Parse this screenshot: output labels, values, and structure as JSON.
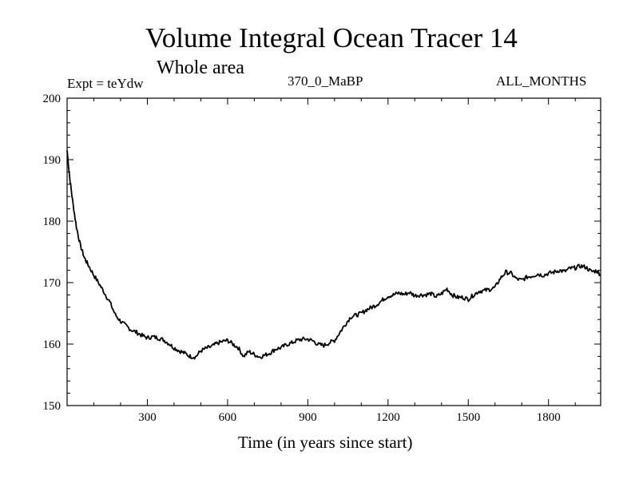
{
  "chart_data": {
    "type": "line",
    "title": "Volume Integral Ocean Tracer 14",
    "subtitle": "Whole area",
    "expt_label": "Expt = teYdw",
    "run_label": "370_0_MaBP",
    "months_label": "ALL_MONTHS",
    "xlabel": "Time (in years since start)",
    "ylabel": "",
    "xlim": [
      0,
      1995
    ],
    "ylim": [
      150,
      200
    ],
    "xticks": [
      300,
      600,
      900,
      1200,
      1500,
      1800
    ],
    "xtick_labels": [
      "300",
      "600",
      "900",
      "1200",
      "1500",
      "1800"
    ],
    "yticks": [
      150,
      160,
      170,
      180,
      190,
      200
    ],
    "ytick_labels": [
      "150",
      "160",
      "170",
      "180",
      "190",
      "200"
    ],
    "line_color": "#000000",
    "series": [
      {
        "name": "Tracer 14",
        "x": [
          0,
          10,
          20,
          35,
          50,
          65,
          80,
          100,
          120,
          140,
          160,
          180,
          200,
          220,
          240,
          260,
          280,
          300,
          320,
          340,
          360,
          380,
          400,
          420,
          440,
          460,
          480,
          500,
          520,
          540,
          560,
          580,
          600,
          620,
          640,
          660,
          680,
          700,
          720,
          740,
          760,
          780,
          800,
          820,
          840,
          860,
          880,
          900,
          920,
          940,
          960,
          980,
          1000,
          1020,
          1040,
          1060,
          1080,
          1100,
          1120,
          1140,
          1160,
          1180,
          1200,
          1220,
          1240,
          1260,
          1280,
          1300,
          1320,
          1340,
          1360,
          1380,
          1400,
          1420,
          1440,
          1460,
          1480,
          1500,
          1520,
          1540,
          1560,
          1580,
          1600,
          1620,
          1640,
          1660,
          1680,
          1700,
          1720,
          1740,
          1760,
          1780,
          1800,
          1820,
          1840,
          1860,
          1880,
          1900,
          1920,
          1940,
          1960,
          1980,
          1995
        ],
        "values": [
          191.5,
          187.0,
          183.5,
          179.0,
          176.0,
          174.0,
          172.8,
          171.2,
          169.8,
          168.3,
          166.8,
          164.8,
          163.7,
          163.0,
          162.3,
          161.9,
          161.4,
          161.0,
          161.2,
          161.0,
          160.7,
          160.1,
          159.4,
          158.9,
          158.5,
          158.0,
          157.9,
          158.9,
          159.3,
          159.6,
          160.1,
          160.4,
          160.6,
          160.0,
          159.4,
          158.0,
          158.8,
          158.3,
          157.9,
          158.2,
          158.6,
          159.2,
          159.4,
          159.9,
          160.2,
          160.6,
          160.8,
          160.8,
          160.5,
          159.9,
          159.8,
          160.2,
          160.6,
          161.9,
          163.2,
          164.4,
          164.7,
          165.0,
          165.6,
          166.0,
          166.5,
          167.2,
          167.8,
          168.0,
          168.3,
          168.1,
          168.4,
          167.9,
          168.0,
          168.0,
          168.2,
          167.7,
          168.2,
          169.0,
          168.0,
          167.6,
          167.6,
          167.3,
          168.0,
          168.6,
          168.7,
          168.9,
          169.2,
          170.7,
          171.7,
          171.5,
          170.6,
          170.4,
          170.9,
          171.1,
          171.4,
          171.2,
          171.5,
          171.7,
          172.0,
          171.8,
          172.3,
          172.4,
          172.7,
          172.5,
          171.8,
          171.9,
          171.3
        ]
      }
    ]
  }
}
